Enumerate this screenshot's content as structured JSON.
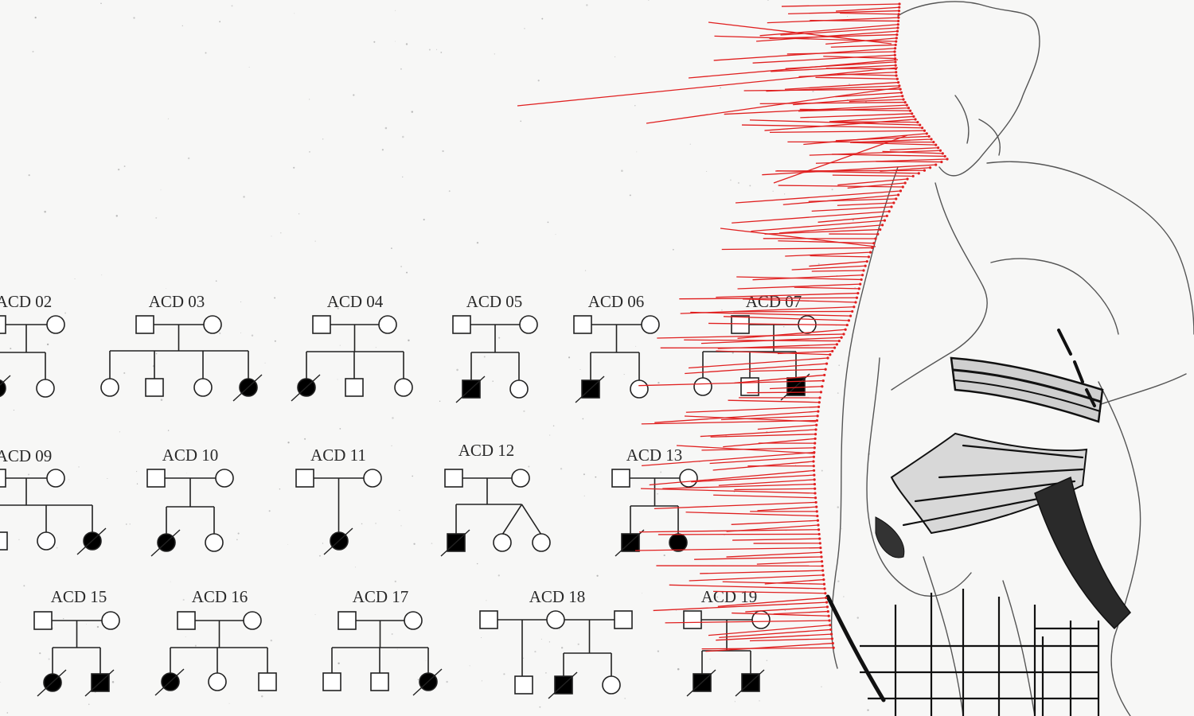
{
  "colors": {
    "background": "#f7f7f6",
    "ink": "#222222",
    "affected": "#000000",
    "unaffected": "#ffffff",
    "rays": "#e02020",
    "sketch": "#555555"
  },
  "symbols": {
    "male": "square",
    "female": "circle",
    "affected": "filled",
    "deceased": "diagonal-slash"
  },
  "pedigrees": [
    {
      "label": "ACD 02",
      "parents": [
        "male",
        "female"
      ],
      "children": [
        {
          "sex": "female",
          "affected": true,
          "deceased": true
        },
        {
          "sex": "female",
          "affected": false,
          "deceased": false
        }
      ]
    },
    {
      "label": "ACD 03",
      "parents": [
        "male",
        "female"
      ],
      "children": [
        {
          "sex": "female",
          "affected": false,
          "deceased": false
        },
        {
          "sex": "male",
          "affected": false,
          "deceased": false
        },
        {
          "sex": "female",
          "affected": false,
          "deceased": false
        },
        {
          "sex": "female",
          "affected": true,
          "deceased": true
        }
      ]
    },
    {
      "label": "ACD 04",
      "parents": [
        "male",
        "female"
      ],
      "children": [
        {
          "sex": "female",
          "affected": true,
          "deceased": true
        },
        {
          "sex": "male",
          "affected": false,
          "deceased": false
        },
        {
          "sex": "female",
          "affected": false,
          "deceased": false
        }
      ]
    },
    {
      "label": "ACD 05",
      "parents": [
        "male",
        "female"
      ],
      "children": [
        {
          "sex": "male",
          "affected": true,
          "deceased": true
        },
        {
          "sex": "female",
          "affected": false,
          "deceased": false
        }
      ]
    },
    {
      "label": "ACD 06",
      "parents": [
        "male",
        "female"
      ],
      "children": [
        {
          "sex": "male",
          "affected": true,
          "deceased": true
        },
        {
          "sex": "female",
          "affected": false,
          "deceased": false
        }
      ]
    },
    {
      "label": "ACD 07",
      "parents": [
        "male",
        "female"
      ],
      "children": [
        {
          "sex": "female",
          "affected": false,
          "deceased": false
        },
        {
          "sex": "male",
          "affected": false,
          "deceased": false
        },
        {
          "sex": "male",
          "affected": true,
          "deceased": true
        }
      ]
    },
    {
      "label": "ACD 09",
      "parents": [
        "male",
        "female"
      ],
      "children": [
        {
          "sex": "male",
          "affected": false,
          "deceased": false
        },
        {
          "sex": "female",
          "affected": false,
          "deceased": false
        },
        {
          "sex": "female",
          "affected": true,
          "deceased": true
        }
      ]
    },
    {
      "label": "ACD 10",
      "parents": [
        "male",
        "female"
      ],
      "children": [
        {
          "sex": "female",
          "affected": true,
          "deceased": true
        },
        {
          "sex": "female",
          "affected": false,
          "deceased": false
        }
      ]
    },
    {
      "label": "ACD 11",
      "parents": [
        "male",
        "female"
      ],
      "children": [
        {
          "sex": "female",
          "affected": true,
          "deceased": true
        }
      ]
    },
    {
      "label": "ACD 12",
      "parents": [
        "male",
        "female"
      ],
      "children": [
        {
          "sex": "male",
          "affected": true,
          "deceased": true
        },
        {
          "sex": "female",
          "affected": false,
          "deceased": false
        },
        {
          "sex": "female",
          "affected": false,
          "deceased": false
        }
      ],
      "twins": [
        1,
        2
      ]
    },
    {
      "label": "ACD 13",
      "parents": [
        "male",
        "female"
      ],
      "children": [
        {
          "sex": "male",
          "affected": true,
          "deceased": true
        },
        {
          "sex": "female",
          "affected": true,
          "deceased": false
        }
      ]
    },
    {
      "label": "ACD 15",
      "parents": [
        "male",
        "female"
      ],
      "children": [
        {
          "sex": "female",
          "affected": true,
          "deceased": true
        },
        {
          "sex": "male",
          "affected": true,
          "deceased": true
        }
      ]
    },
    {
      "label": "ACD 16",
      "parents": [
        "male",
        "female"
      ],
      "children": [
        {
          "sex": "female",
          "affected": true,
          "deceased": true
        },
        {
          "sex": "female",
          "affected": false,
          "deceased": false
        },
        {
          "sex": "male",
          "affected": false,
          "deceased": false
        }
      ]
    },
    {
      "label": "ACD 17",
      "parents": [
        "male",
        "female"
      ],
      "children": [
        {
          "sex": "male",
          "affected": false,
          "deceased": false
        },
        {
          "sex": "male",
          "affected": false,
          "deceased": false
        },
        {
          "sex": "female",
          "affected": true,
          "deceased": true
        }
      ]
    },
    {
      "label": "ACD 18",
      "parents": [
        "male",
        "female",
        "male"
      ],
      "children": [
        {
          "sex": "male",
          "affected": false,
          "deceased": false
        },
        {
          "sex": "male",
          "affected": true,
          "deceased": true
        },
        {
          "sex": "female",
          "affected": false,
          "deceased": false
        }
      ]
    },
    {
      "label": "ACD 19",
      "parents": [
        "male",
        "female"
      ],
      "children": [
        {
          "sex": "male",
          "affected": true,
          "deceased": true
        },
        {
          "sex": "male",
          "affected": true,
          "deceased": true
        }
      ]
    }
  ]
}
